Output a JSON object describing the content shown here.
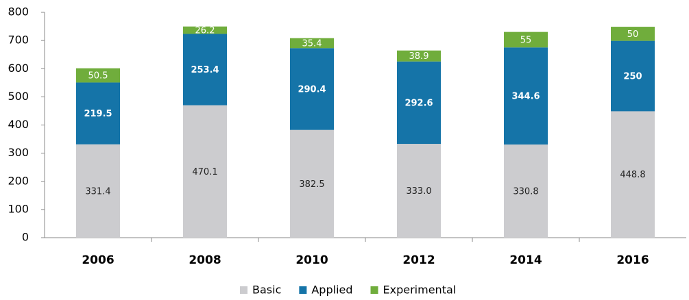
{
  "chart_data": {
    "type": "stacked_bar",
    "categories": [
      "2006",
      "2008",
      "2010",
      "2012",
      "2014",
      "2016"
    ],
    "series": [
      {
        "name": "Basic",
        "color": "#cccccf",
        "values": [
          331.4,
          470.1,
          382.5,
          333.0,
          330.8,
          448.8
        ],
        "value_labels": [
          "331.4",
          "470.1",
          "382.5",
          "333.0",
          "330.8",
          "448.8"
        ]
      },
      {
        "name": "Applied",
        "color": "#1574a8",
        "values": [
          219.5,
          253.4,
          290.4,
          292.6,
          344.6,
          250
        ]
      },
      {
        "name": "Experimental",
        "color": "#70ad3c",
        "values": [
          50.5,
          26.2,
          35.4,
          38.9,
          55,
          50
        ]
      }
    ],
    "ylim": [
      0,
      800
    ],
    "yticks": [
      0,
      100,
      200,
      300,
      400,
      500,
      600,
      700,
      800
    ],
    "legend": "bottom"
  }
}
